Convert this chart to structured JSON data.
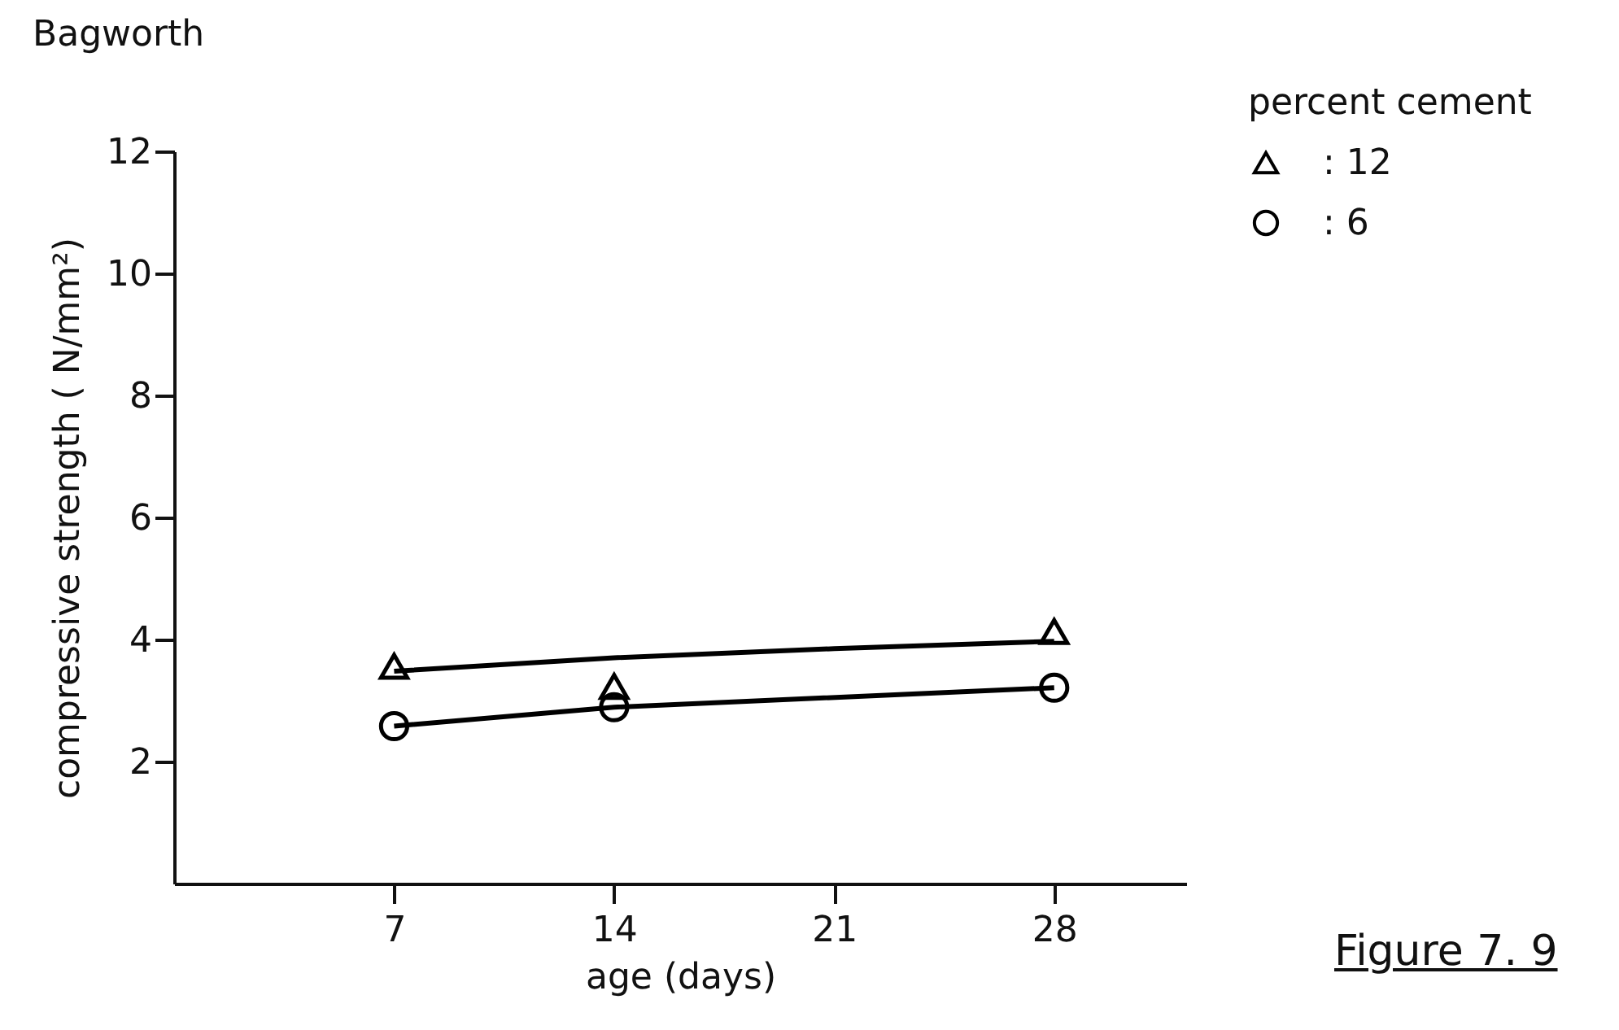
{
  "chart_data": {
    "type": "line",
    "title": "Bagworth",
    "xlabel": "age (days)",
    "ylabel": "compressive strength ( N/mm²)",
    "legend_title": "percent cement",
    "x": [
      7,
      14,
      28
    ],
    "series": [
      {
        "name": ": 12",
        "type": "scatter",
        "marker": "triangle",
        "color": "#000000",
        "values": [
          3.56,
          3.23,
          4.13
        ]
      },
      {
        "name": ":  6",
        "type": "line",
        "marker": "circle",
        "color": "#000000",
        "values": [
          2.58,
          2.89,
          3.21
        ]
      },
      {
        "marker": "none",
        "color": "#000000",
        "x": [
          7,
          14,
          21,
          28
        ],
        "values": [
          3.48,
          3.7,
          3.85,
          3.97
        ]
      }
    ],
    "xlim": [
      0,
      32.2
    ],
    "ylim": [
      0,
      12
    ],
    "xticks": [
      7,
      14,
      21,
      28
    ],
    "yticks": [
      2,
      4,
      6,
      8,
      10,
      12
    ],
    "grid": false,
    "legend": "top right",
    "line_style": "solid",
    "annotations": [
      "Figure 7. 9"
    ]
  }
}
